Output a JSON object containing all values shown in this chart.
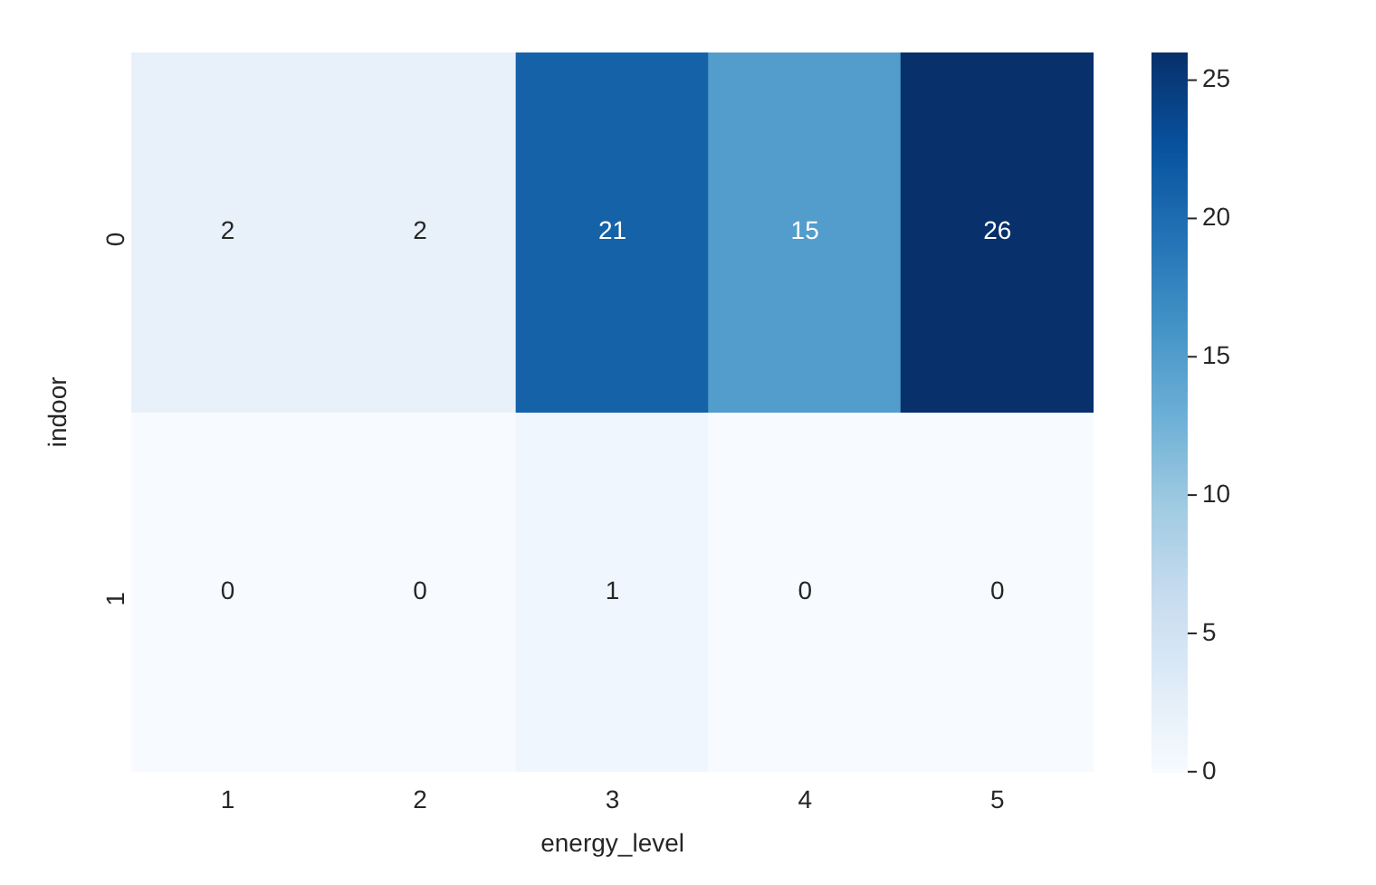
{
  "chart_data": {
    "type": "heatmap",
    "xlabel": "energy_level",
    "ylabel": "indoor",
    "categories": [
      "1",
      "2",
      "3",
      "4",
      "5"
    ],
    "y_categories": [
      "0",
      "1"
    ],
    "cells": [
      [
        2,
        2,
        21,
        15,
        26
      ],
      [
        0,
        0,
        1,
        0,
        0
      ]
    ],
    "clim": [
      0,
      26
    ],
    "cticks": [
      0,
      5,
      10,
      15,
      20,
      25
    ],
    "data_labels": true
  }
}
